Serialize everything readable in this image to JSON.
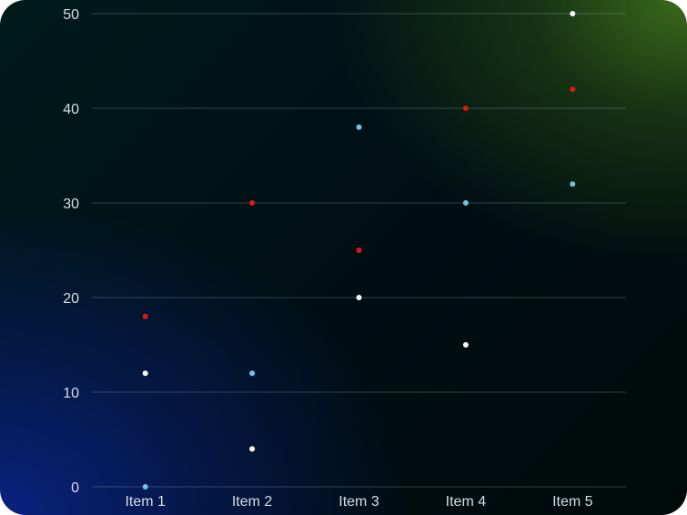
{
  "chart_data": {
    "type": "scatter",
    "title": "",
    "xlabel": "",
    "ylabel": "",
    "categories": [
      "Item 1",
      "Item 2",
      "Item 3",
      "Item 4",
      "Item 5"
    ],
    "ylim": [
      0,
      50
    ],
    "yticks": [
      0,
      10,
      20,
      30,
      40,
      50
    ],
    "grid": true,
    "legend": "none",
    "series": [
      {
        "color": "#e0190f",
        "values": [
          18,
          30,
          25,
          40,
          42
        ]
      },
      {
        "color": "#ffffff",
        "values": [
          12,
          4,
          20,
          15,
          50
        ]
      },
      {
        "color": "#6ec6e6",
        "values": [
          0,
          12,
          38,
          30,
          32
        ]
      }
    ]
  }
}
